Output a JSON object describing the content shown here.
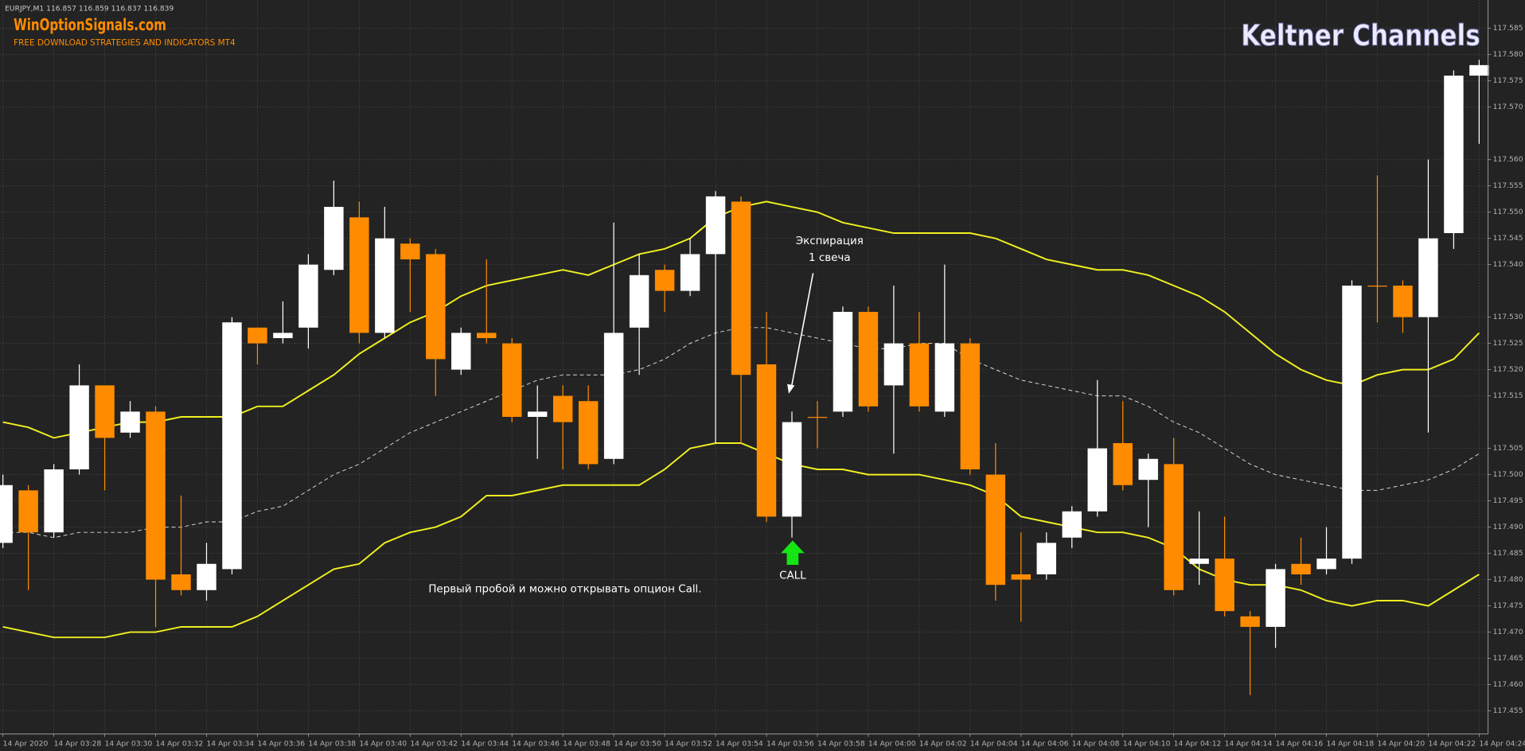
{
  "chart_data": {
    "type": "candlestick",
    "header": "EURJPY,M1  116.857 116.859 116.837 116.839",
    "logo": "WinOptionSignals.com",
    "logo_subtitle": "FREE DOWNLOAD STRATEGIES AND INDICATORS MT4",
    "title": "Keltner Channels",
    "annotations": {
      "expiration": [
        "Экспирация",
        "1 свеча"
      ],
      "signal": "CALL",
      "note": "Первый пробой и можно открывать опцион Call."
    },
    "categories": [
      "14 Apr 2020",
      null,
      "14 Apr 03:28",
      null,
      "14 Apr 03:30",
      null,
      "14 Apr 03:32",
      null,
      "14 Apr 03:34",
      null,
      "14 Apr 03:36",
      null,
      "14 Apr 03:38",
      null,
      "14 Apr 03:40",
      null,
      "14 Apr 03:42",
      null,
      "14 Apr 03:44",
      null,
      "14 Apr 03:46",
      null,
      "14 Apr 03:48",
      null,
      "14 Apr 03:50",
      null,
      "14 Apr 03:52",
      null,
      "14 Apr 03:54",
      null,
      "14 Apr 03:56",
      null,
      "14 Apr 03:58",
      null,
      "14 Apr 04:00",
      null,
      "14 Apr 04:02",
      null,
      "14 Apr 04:04",
      null,
      "14 Apr 04:06",
      null,
      "14 Apr 04:08",
      null,
      "14 Apr 04:10",
      null,
      "14 Apr 04:12",
      null,
      "14 Apr 04:14",
      null,
      "14 Apr 04:16",
      null,
      "14 Apr 04:18",
      null,
      "14 Apr 04:20",
      null,
      "14 Apr 04:22",
      null,
      "14 Apr 04:24"
    ],
    "open": [
      117.487,
      117.497,
      117.489,
      117.501,
      117.517,
      117.508,
      117.512,
      117.481,
      117.478,
      117.482,
      117.528,
      117.526,
      117.528,
      117.539,
      117.549,
      117.527,
      117.544,
      117.542,
      117.52,
      117.527,
      117.525,
      117.511,
      117.515,
      117.514,
      117.503,
      117.528,
      117.539,
      117.535,
      117.542,
      117.552,
      117.521,
      117.492,
      117.511,
      117.512,
      117.531,
      117.517,
      117.525,
      117.512,
      117.525,
      117.5,
      117.481,
      117.481,
      117.488,
      117.493,
      117.506,
      117.499,
      117.502,
      117.483,
      117.484,
      117.473,
      117.471,
      117.483,
      117.482,
      117.484,
      117.536,
      117.536,
      117.53,
      117.546,
      117.576
    ],
    "high": [
      117.5,
      117.498,
      117.502,
      117.521,
      117.517,
      117.514,
      117.513,
      117.496,
      117.487,
      117.53,
      117.528,
      117.533,
      117.542,
      117.556,
      117.552,
      117.551,
      117.545,
      117.543,
      117.528,
      117.541,
      117.526,
      117.517,
      117.517,
      117.517,
      117.548,
      117.542,
      117.54,
      117.545,
      117.554,
      117.553,
      117.531,
      117.512,
      117.514,
      117.532,
      117.532,
      117.536,
      117.531,
      117.54,
      117.526,
      117.506,
      117.489,
      117.489,
      117.494,
      117.518,
      117.514,
      117.504,
      117.507,
      117.493,
      117.492,
      117.474,
      117.483,
      117.488,
      117.49,
      117.537,
      117.557,
      117.537,
      117.56,
      117.577,
      117.579
    ],
    "low": [
      117.486,
      117.478,
      117.488,
      117.5,
      117.497,
      117.507,
      117.471,
      117.477,
      117.476,
      117.481,
      117.521,
      117.525,
      117.524,
      117.538,
      117.525,
      117.526,
      117.531,
      117.515,
      117.519,
      117.525,
      117.51,
      117.503,
      117.501,
      117.501,
      117.502,
      117.519,
      117.531,
      117.534,
      117.506,
      117.506,
      117.491,
      117.488,
      117.505,
      117.511,
      117.512,
      117.504,
      117.512,
      117.511,
      117.5,
      117.476,
      117.472,
      117.48,
      117.486,
      117.492,
      117.497,
      117.49,
      117.477,
      117.479,
      117.473,
      117.458,
      117.467,
      117.479,
      117.481,
      117.483,
      117.529,
      117.527,
      117.508,
      117.543,
      117.563
    ],
    "close": [
      117.498,
      117.489,
      117.501,
      117.517,
      117.507,
      117.512,
      117.48,
      117.478,
      117.483,
      117.529,
      117.525,
      117.527,
      117.54,
      117.551,
      117.527,
      117.545,
      117.541,
      117.522,
      117.527,
      117.526,
      117.511,
      117.512,
      117.51,
      117.502,
      117.527,
      117.538,
      117.535,
      117.542,
      117.553,
      117.519,
      117.492,
      117.51,
      117.511,
      117.531,
      117.513,
      117.525,
      117.513,
      117.525,
      117.501,
      117.479,
      117.48,
      117.487,
      117.493,
      117.505,
      117.498,
      117.503,
      117.478,
      117.484,
      117.474,
      117.471,
      117.482,
      117.481,
      117.484,
      117.536,
      117.536,
      117.53,
      117.545,
      117.576,
      117.578
    ],
    "up_color": "#ffffff",
    "down_color": "#ff8c00",
    "lines": [
      {
        "color": "#f0f020",
        "dashed": false,
        "values": [
          117.51,
          117.509,
          117.507,
          117.508,
          117.509,
          117.51,
          117.51,
          117.511,
          117.511,
          117.511,
          117.513,
          117.513,
          117.516,
          117.519,
          117.523,
          117.526,
          117.529,
          117.531,
          117.534,
          117.536,
          117.537,
          117.538,
          117.539,
          117.538,
          117.54,
          117.542,
          117.543,
          117.545,
          117.549,
          117.551,
          117.552,
          117.551,
          117.55,
          117.548,
          117.547,
          117.546,
          117.546,
          117.546,
          117.546,
          117.545,
          117.543,
          117.541,
          117.54,
          117.539,
          117.539,
          117.538,
          117.536,
          117.534,
          117.531,
          117.527,
          117.523,
          117.52,
          117.518,
          117.517,
          117.519,
          117.52,
          117.52,
          117.522,
          117.527
        ]
      },
      {
        "color": "#d8d8d8",
        "dashed": true,
        "values": [
          117.489,
          117.489,
          117.488,
          117.489,
          117.489,
          117.489,
          117.49,
          117.49,
          117.491,
          117.491,
          117.493,
          117.494,
          117.497,
          117.5,
          117.502,
          117.505,
          117.508,
          117.51,
          117.512,
          117.514,
          117.516,
          117.518,
          117.519,
          117.519,
          117.519,
          117.52,
          117.522,
          117.525,
          117.527,
          117.528,
          117.528,
          117.527,
          117.526,
          117.525,
          117.524,
          117.524,
          117.525,
          117.525,
          117.522,
          117.52,
          117.518,
          117.517,
          117.516,
          117.515,
          117.515,
          117.513,
          117.51,
          117.508,
          117.505,
          117.502,
          117.5,
          117.499,
          117.498,
          117.497,
          117.497,
          117.498,
          117.499,
          117.501,
          117.504
        ]
      },
      {
        "color": "#f0f020",
        "dashed": false,
        "values": [
          117.471,
          117.47,
          117.469,
          117.469,
          117.469,
          117.47,
          117.47,
          117.471,
          117.471,
          117.471,
          117.473,
          117.476,
          117.479,
          117.482,
          117.483,
          117.487,
          117.489,
          117.49,
          117.492,
          117.496,
          117.496,
          117.497,
          117.498,
          117.498,
          117.498,
          117.498,
          117.501,
          117.505,
          117.506,
          117.506,
          117.504,
          117.502,
          117.501,
          117.501,
          117.5,
          117.5,
          117.5,
          117.499,
          117.498,
          117.496,
          117.492,
          117.491,
          117.49,
          117.489,
          117.489,
          117.488,
          117.486,
          117.482,
          117.48,
          117.479,
          117.479,
          117.478,
          117.476,
          117.475,
          117.476,
          117.476,
          117.475,
          117.478,
          117.481
        ]
      }
    ],
    "ylim": [
      117.4506,
      117.5904
    ],
    "yticks": [
      117.585,
      {
        "value": 117.58,
        "label": "117.580"
      },
      117.575,
      {
        "value": 117.57,
        "label": "117.570"
      },
      {
        "value": 117.56,
        "label": "117.560"
      },
      117.555,
      {
        "value": 117.55,
        "label": "117.550"
      },
      117.545,
      {
        "value": 117.54,
        "label": "117.540"
      },
      {
        "value": 117.53,
        "label": "117.530"
      },
      117.525,
      {
        "value": 117.52,
        "label": "117.520"
      },
      117.515,
      117.505,
      {
        "value": 117.5,
        "label": "117.500"
      },
      117.495,
      {
        "value": 117.49,
        "label": "117.490"
      },
      117.485,
      {
        "value": 117.48,
        "label": "117.480"
      },
      117.475,
      {
        "value": 117.47,
        "label": "117.470"
      },
      117.465,
      {
        "value": 117.46,
        "label": "117.460"
      },
      117.455
    ],
    "grid": true
  }
}
